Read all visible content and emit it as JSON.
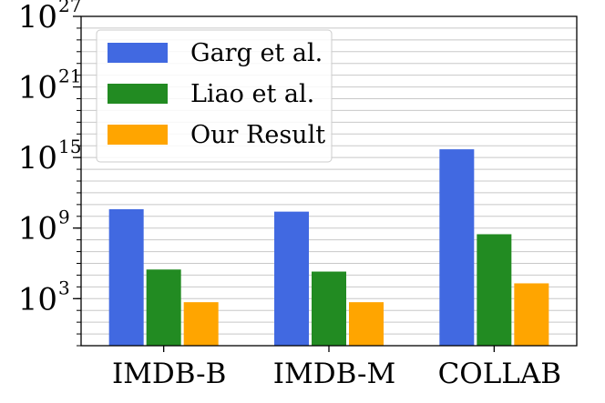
{
  "chart_data": {
    "type": "bar",
    "yscale": "log",
    "ylim": [
      0.1,
      1e+27
    ],
    "yticks": [
      {
        "value": 1000.0,
        "base": "10",
        "exp": "3"
      },
      {
        "value": 1000000000.0,
        "base": "10",
        "exp": "9"
      },
      {
        "value": 1000000000000000.0,
        "base": "10",
        "exp": "15"
      },
      {
        "value": 1e+21,
        "base": "10",
        "exp": "21"
      },
      {
        "value": 1e+27,
        "base": "10",
        "exp": "27"
      }
    ],
    "grid": true,
    "legend_position": "top-left",
    "categories": [
      "IMDB-B",
      "IMDB-M",
      "COLLAB"
    ],
    "series": [
      {
        "name": "Garg et al.",
        "color": "#4169e1",
        "values": [
          40000000000.0,
          25000000000.0,
          5000000000000000.0
        ]
      },
      {
        "name": "Liao et al.",
        "color": "#228b22",
        "values": [
          300000.0,
          200000.0,
          300000000.0
        ]
      },
      {
        "name": "Our Result",
        "color": "#ffa500",
        "values": [
          500.0,
          500.0,
          20000.0
        ]
      }
    ]
  }
}
